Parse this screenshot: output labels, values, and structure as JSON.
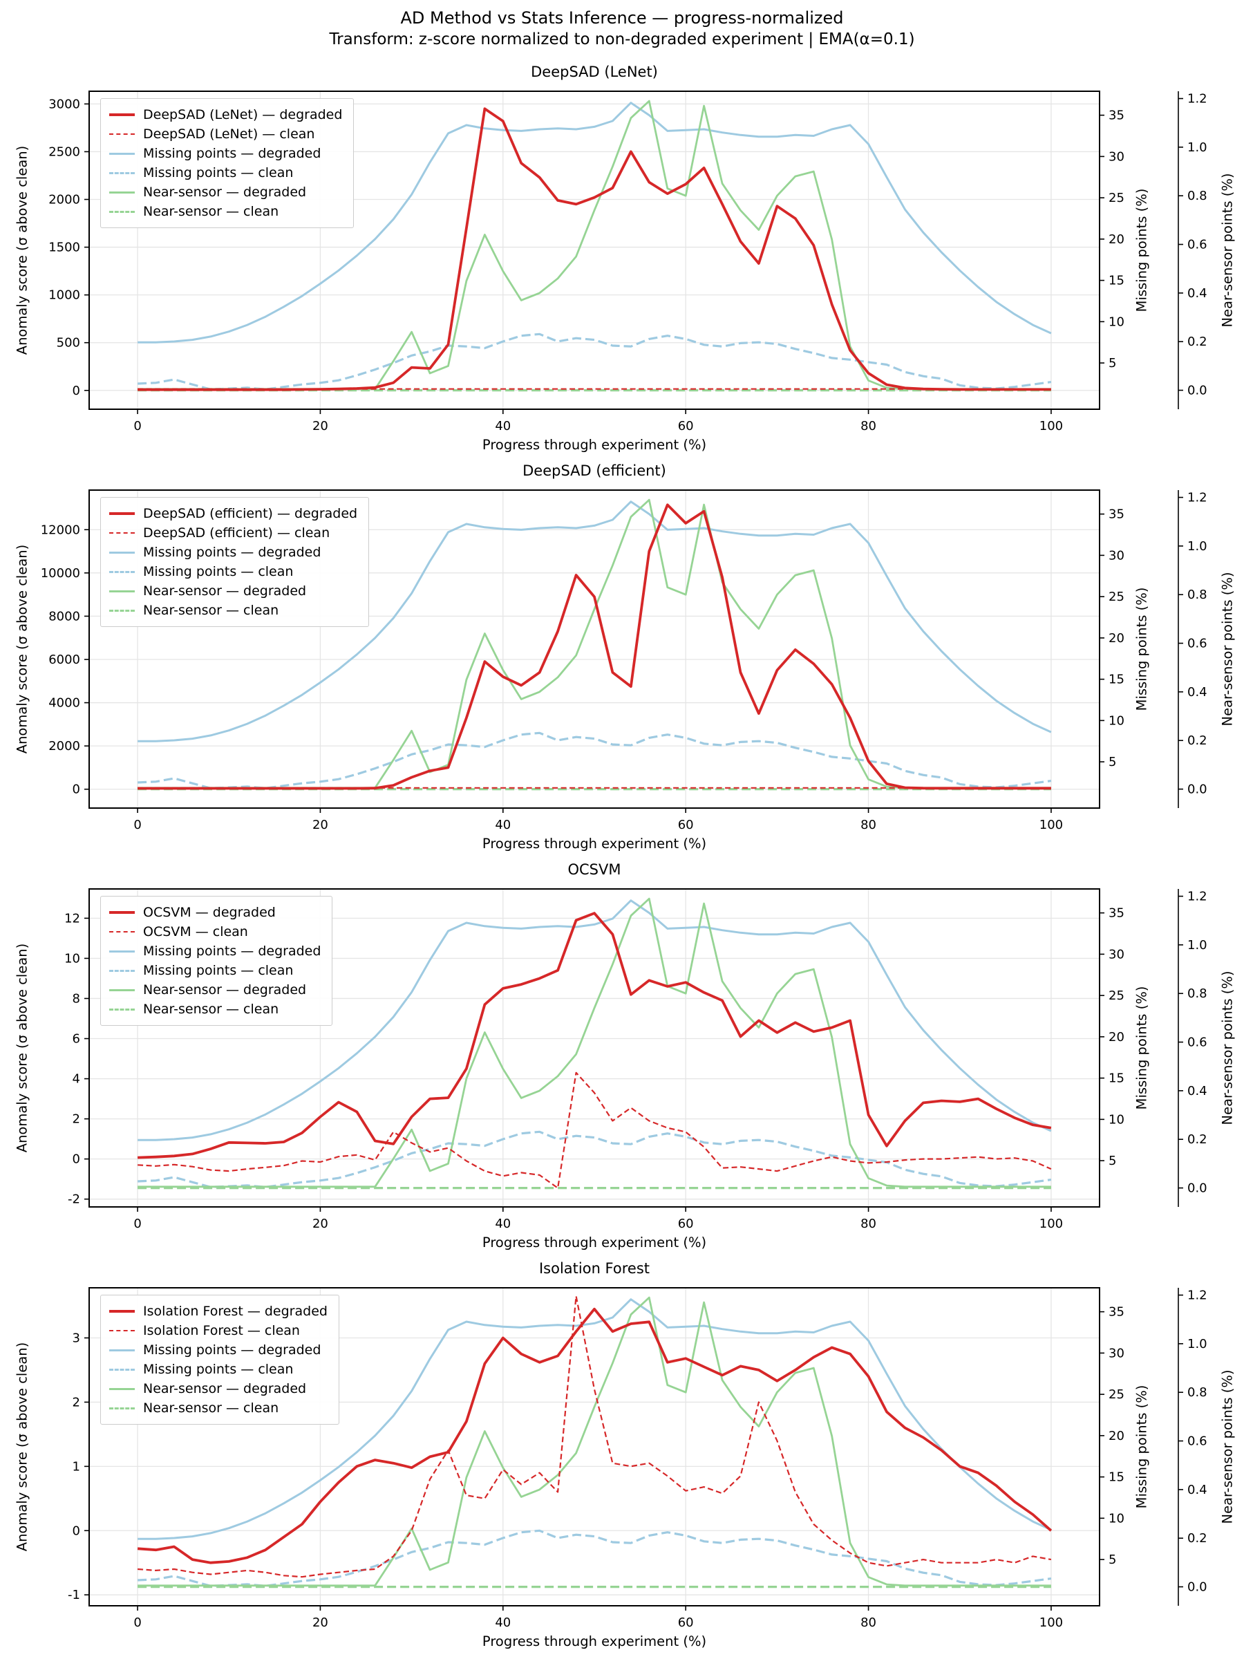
{
  "page": {
    "suptitle_line1": "AD Method vs Stats Inference — progress-normalized",
    "suptitle_line2": "Transform: z-score normalized to non-degraded experiment | EMA(α=0.1)"
  },
  "colors": {
    "method_red": "#d62728",
    "missing_blue": "#9ecae1",
    "near_green": "#96d494",
    "grid": "#e5e5e5",
    "spine": "#000000"
  },
  "chart_data": {
    "type": "line",
    "xlabel": "Progress through experiment (%)",
    "ylabel_left": "Anomaly score (σ above clean)",
    "ylabel_missing": "Missing points (%)",
    "ylabel_near": "Near-sensor points (%)",
    "x_ticks": [
      0,
      20,
      40,
      60,
      80,
      100
    ],
    "x_lim": [
      -5.3,
      105.3
    ],
    "missing_ticks": [
      5,
      10,
      15,
      20,
      25,
      30,
      35
    ],
    "missing_lim": [
      -0.6,
      37.9
    ],
    "near_ticks": [
      0.0,
      0.2,
      0.4,
      0.6,
      0.8,
      1.0,
      1.2
    ],
    "near_lim": [
      -0.078,
      1.23
    ],
    "legend_position": "upper left",
    "grid": true,
    "x": [
      0,
      2,
      4,
      6,
      8,
      10,
      12,
      14,
      16,
      18,
      20,
      22,
      24,
      26,
      28,
      30,
      32,
      34,
      36,
      38,
      40,
      42,
      44,
      46,
      48,
      50,
      52,
      54,
      56,
      58,
      60,
      62,
      64,
      66,
      68,
      70,
      72,
      74,
      76,
      78,
      80,
      82,
      84,
      86,
      88,
      90,
      92,
      94,
      96,
      98,
      100
    ],
    "stat_series": {
      "missing_degraded": [
        7.5,
        7.5,
        7.6,
        7.8,
        8.2,
        8.8,
        9.6,
        10.6,
        11.8,
        13.1,
        14.6,
        16.2,
        18.0,
        20.0,
        22.4,
        25.4,
        29.3,
        32.8,
        33.8,
        33.4,
        33.2,
        33.1,
        33.3,
        33.4,
        33.3,
        33.6,
        34.3,
        36.5,
        35.0,
        33.1,
        33.2,
        33.3,
        32.9,
        32.6,
        32.4,
        32.4,
        32.6,
        32.5,
        33.3,
        33.8,
        31.5,
        27.5,
        23.6,
        20.8,
        18.4,
        16.2,
        14.2,
        12.4,
        10.9,
        9.6,
        8.6
      ],
      "missing_clean": [
        2.5,
        2.6,
        3.0,
        2.4,
        1.8,
        1.9,
        2.0,
        1.8,
        2.1,
        2.4,
        2.6,
        2.9,
        3.5,
        4.2,
        5.0,
        5.9,
        6.4,
        7.1,
        7.0,
        6.8,
        7.6,
        8.3,
        8.5,
        7.6,
        8.0,
        7.8,
        7.1,
        7.0,
        7.9,
        8.3,
        7.9,
        7.2,
        7.0,
        7.4,
        7.5,
        7.3,
        6.7,
        6.2,
        5.6,
        5.4,
        5.1,
        4.8,
        3.9,
        3.4,
        3.1,
        2.3,
        2.0,
        1.9,
        2.1,
        2.4,
        2.7
      ],
      "near_degraded": [
        0.005,
        0.005,
        0.005,
        0.005,
        0.005,
        0.005,
        0.005,
        0.005,
        0.005,
        0.005,
        0.005,
        0.005,
        0.005,
        0.005,
        0.12,
        0.24,
        0.07,
        0.1,
        0.45,
        0.64,
        0.49,
        0.37,
        0.4,
        0.46,
        0.55,
        0.74,
        0.92,
        1.12,
        1.19,
        0.83,
        0.8,
        1.17,
        0.85,
        0.74,
        0.66,
        0.8,
        0.88,
        0.9,
        0.62,
        0.18,
        0.04,
        0.01,
        0.005,
        0.005,
        0.005,
        0.005,
        0.005,
        0.005,
        0.005,
        0.005,
        0.005
      ],
      "near_clean": [
        0,
        0,
        0,
        0,
        0,
        0,
        0,
        0,
        0,
        0,
        0,
        0,
        0,
        0,
        0,
        0,
        0,
        0,
        0,
        0,
        0,
        0,
        0,
        0,
        0,
        0,
        0,
        0,
        0,
        0,
        0,
        0,
        0,
        0,
        0,
        0,
        0,
        0,
        0,
        0,
        0,
        0,
        0,
        0,
        0,
        0,
        0,
        0,
        0,
        0,
        0
      ]
    },
    "panels": [
      {
        "title": "DeepSAD (LeNet)",
        "legend": [
          "DeepSAD (LeNet) — degraded",
          "DeepSAD (LeNet) — clean",
          "Missing points — degraded",
          "Missing points — clean",
          "Near-sensor — degraded",
          "Near-sensor — clean"
        ],
        "left_ticks": [
          0,
          500,
          1000,
          1500,
          2000,
          2500,
          3000
        ],
        "left_lim": [
          -197,
          3133
        ],
        "method_degraded": [
          8,
          8,
          8,
          8,
          8,
          8,
          8,
          8,
          8,
          10,
          12,
          15,
          20,
          30,
          80,
          240,
          230,
          480,
          1700,
          2950,
          2820,
          2380,
          2230,
          1990,
          1950,
          2020,
          2120,
          2500,
          2180,
          2060,
          2160,
          2330,
          1950,
          1560,
          1330,
          1930,
          1800,
          1520,
          900,
          420,
          180,
          60,
          25,
          15,
          12,
          10,
          10,
          10,
          10,
          10,
          10
        ],
        "method_clean": [
          15,
          15,
          15,
          15,
          15,
          15,
          15,
          15,
          15,
          15,
          15,
          15,
          15,
          15,
          15,
          15,
          15,
          15,
          15,
          15,
          15,
          15,
          15,
          15,
          15,
          15,
          15,
          15,
          15,
          15,
          15,
          15,
          15,
          15,
          15,
          15,
          15,
          15,
          15,
          15,
          15,
          15,
          15,
          15,
          15,
          15,
          15,
          15,
          15,
          15,
          15
        ]
      },
      {
        "title": "DeepSAD (efficient)",
        "legend": [
          "DeepSAD (efficient) — degraded",
          "DeepSAD (efficient) — clean",
          "Missing points — degraded",
          "Missing points — clean",
          "Near-sensor — degraded",
          "Near-sensor — clean"
        ],
        "left_ticks": [
          0,
          2000,
          4000,
          6000,
          8000,
          10000,
          12000
        ],
        "left_lim": [
          -872,
          13830
        ],
        "method_degraded": [
          40,
          40,
          40,
          40,
          40,
          40,
          40,
          40,
          40,
          40,
          40,
          40,
          40,
          50,
          180,
          550,
          850,
          1000,
          3300,
          5900,
          5200,
          4800,
          5400,
          7300,
          9900,
          8900,
          5400,
          4750,
          11000,
          13150,
          12300,
          12850,
          9800,
          5400,
          3500,
          5500,
          6450,
          5800,
          4850,
          3300,
          1300,
          250,
          70,
          50,
          45,
          45,
          45,
          45,
          45,
          45,
          45
        ],
        "method_clean": [
          60,
          60,
          60,
          60,
          60,
          60,
          60,
          60,
          60,
          60,
          60,
          60,
          60,
          60,
          60,
          60,
          60,
          60,
          60,
          60,
          60,
          60,
          60,
          60,
          60,
          60,
          60,
          60,
          60,
          60,
          60,
          60,
          60,
          60,
          60,
          60,
          60,
          60,
          60,
          60,
          60,
          60,
          60,
          60,
          60,
          60,
          60,
          60,
          60,
          60,
          60
        ]
      },
      {
        "title": "OCSVM",
        "legend": [
          "OCSVM — degraded",
          "OCSVM — clean",
          "Missing points — degraded",
          "Missing points — clean",
          "Near-sensor — degraded",
          "Near-sensor — clean"
        ],
        "left_ticks": [
          -2,
          0,
          2,
          4,
          6,
          8,
          10,
          12
        ],
        "left_lim": [
          -2.39,
          13.46
        ],
        "method_degraded": [
          0.07,
          0.1,
          0.15,
          0.25,
          0.5,
          0.82,
          0.8,
          0.78,
          0.85,
          1.3,
          2.1,
          2.83,
          2.35,
          0.9,
          0.75,
          2.1,
          3.0,
          3.05,
          4.5,
          7.7,
          8.5,
          8.7,
          9.0,
          9.4,
          11.9,
          12.25,
          11.2,
          8.2,
          8.9,
          8.6,
          8.8,
          8.3,
          7.9,
          6.1,
          6.9,
          6.3,
          6.8,
          6.35,
          6.55,
          6.9,
          2.2,
          0.65,
          1.9,
          2.8,
          2.9,
          2.85,
          3.0,
          2.5,
          2.05,
          1.7,
          1.55
        ],
        "method_clean": [
          -0.3,
          -0.35,
          -0.28,
          -0.38,
          -0.55,
          -0.6,
          -0.5,
          -0.42,
          -0.33,
          -0.1,
          -0.15,
          0.12,
          0.2,
          -0.05,
          1.35,
          0.8,
          0.35,
          0.55,
          -0.1,
          -0.6,
          -0.85,
          -0.68,
          -0.8,
          -1.45,
          4.3,
          3.3,
          1.9,
          2.55,
          1.9,
          1.55,
          1.35,
          0.6,
          -0.45,
          -0.4,
          -0.5,
          -0.6,
          -0.35,
          -0.1,
          0.1,
          -0.1,
          -0.2,
          -0.15,
          -0.05,
          0.0,
          0.0,
          0.05,
          0.1,
          0.0,
          0.05,
          -0.1,
          -0.5
        ]
      },
      {
        "title": "Isolation Forest",
        "legend": [
          "Isolation Forest — degraded",
          "Isolation Forest — clean",
          "Missing points — degraded",
          "Missing points — clean",
          "Near-sensor — degraded",
          "Near-sensor — clean"
        ],
        "left_ticks": [
          -1,
          0,
          1,
          2,
          3
        ],
        "left_lim": [
          -1.17,
          3.78
        ],
        "method_degraded": [
          -0.28,
          -0.3,
          -0.25,
          -0.45,
          -0.5,
          -0.48,
          -0.42,
          -0.3,
          -0.1,
          0.1,
          0.45,
          0.75,
          1.0,
          1.1,
          1.05,
          0.98,
          1.15,
          1.22,
          1.7,
          2.6,
          3.0,
          2.75,
          2.62,
          2.72,
          3.1,
          3.45,
          3.1,
          3.22,
          3.25,
          2.62,
          2.68,
          2.55,
          2.42,
          2.56,
          2.5,
          2.33,
          2.5,
          2.7,
          2.85,
          2.75,
          2.4,
          1.85,
          1.6,
          1.45,
          1.25,
          1.0,
          0.9,
          0.7,
          0.45,
          0.25,
          0.0
        ],
        "method_clean": [
          -0.6,
          -0.62,
          -0.6,
          -0.65,
          -0.68,
          -0.65,
          -0.62,
          -0.65,
          -0.7,
          -0.72,
          -0.68,
          -0.65,
          -0.62,
          -0.6,
          -0.4,
          0.0,
          0.8,
          1.25,
          0.55,
          0.5,
          0.95,
          0.72,
          0.9,
          0.6,
          3.65,
          2.2,
          1.05,
          1.0,
          1.05,
          0.85,
          0.62,
          0.68,
          0.58,
          0.85,
          2.0,
          1.4,
          0.6,
          0.1,
          -0.15,
          -0.35,
          -0.5,
          -0.55,
          -0.5,
          -0.45,
          -0.5,
          -0.5,
          -0.5,
          -0.45,
          -0.5,
          -0.4,
          -0.45
        ]
      }
    ]
  }
}
